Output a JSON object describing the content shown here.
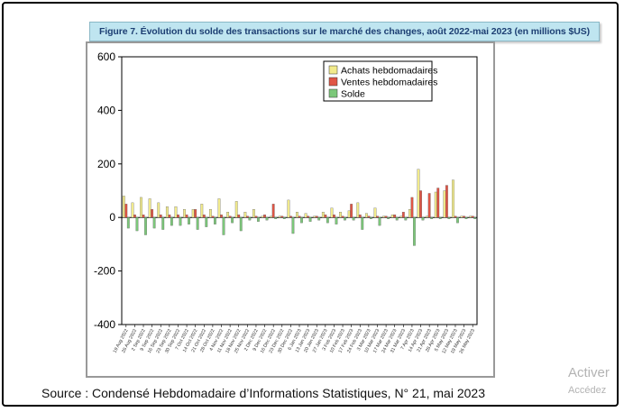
{
  "figure": {
    "title": "Figure 7. Évolution du solde des transactions sur le marché des changes, août 2022-mai 2023 (en millions $US)"
  },
  "source_text": "Source : Condensé Hebdomadaire d’Informations Statistiques, N° 21, mai 2023",
  "overlay": {
    "activation_line1": "Activer",
    "activation_line2": "Accédez"
  },
  "colors": {
    "achats": "#f2eb8c",
    "ventes": "#e05545",
    "solde": "#7cc87a",
    "title_bg": "#bfe5f0",
    "title_text": "#1d3f73"
  },
  "chart_data": {
    "type": "bar",
    "title": "",
    "xlabel": "",
    "ylabel": "",
    "ylim": [
      -400,
      600
    ],
    "yticks": [
      "600",
      "400",
      "200",
      "0",
      "-200",
      "-400"
    ],
    "grid": false,
    "legend_position": "top-right",
    "categories": [
      "19 Aug 2022",
      "26 Aug 2022",
      "2 Sep 2022",
      "9 Sep 2022",
      "16 Sep 2022",
      "23 Sep 2022",
      "30 Sep 2022",
      "7 Oct 2022",
      "14 Oct 2022",
      "21 Oct 2022",
      "28 Oct 2022",
      "4 Nov 2022",
      "11 Nov 2022",
      "18 Nov 2022",
      "25 Nov 2022",
      "2 Dec 2022",
      "9 Dec 2022",
      "16 Dec 2022",
      "23 Dec 2022",
      "30 Dec 2022",
      "6 Jan 2023",
      "13 Jan 2023",
      "20 Jan 2023",
      "27 Jan 2023",
      "3 Feb 2023",
      "10 Feb 2023",
      "17 Feb 2023",
      "24 Feb 2023",
      "3 Mar 2023",
      "10 Mar 2023",
      "17 Mar 2023",
      "24 Mar 2023",
      "31 Mar 2023",
      "7 Apr 2023",
      "14 Apr 2023",
      "21 Apr 2023",
      "28 Apr 2023",
      "5 May 2023",
      "12 May 2023",
      "19 May 2023",
      "26 May 2023"
    ],
    "series": [
      {
        "name": "Achats hebdomadaires",
        "values": [
          80,
          55,
          75,
          70,
          55,
          40,
          40,
          30,
          30,
          50,
          30,
          70,
          20,
          60,
          20,
          30,
          5,
          5,
          5,
          65,
          20,
          15,
          5,
          20,
          35,
          20,
          25,
          55,
          15,
          35,
          5,
          10,
          5,
          30,
          180,
          5,
          95,
          100,
          140,
          5,
          5
        ]
      },
      {
        "name": "Ventes hebdomadaires",
        "values": [
          50,
          10,
          10,
          30,
          10,
          10,
          10,
          10,
          30,
          10,
          5,
          10,
          5,
          10,
          5,
          5,
          10,
          50,
          5,
          5,
          5,
          5,
          5,
          10,
          10,
          5,
          50,
          10,
          5,
          5,
          5,
          10,
          20,
          75,
          100,
          90,
          110,
          120,
          5,
          5,
          5
        ]
      },
      {
        "name": "Solde",
        "values": [
          -40,
          -50,
          -65,
          -40,
          -45,
          -30,
          -30,
          -25,
          -45,
          -35,
          -25,
          -65,
          -20,
          -50,
          -10,
          -15,
          -10,
          -5,
          -5,
          -60,
          -20,
          -15,
          -10,
          -20,
          -25,
          -10,
          -10,
          -45,
          -5,
          -30,
          -5,
          -10,
          -10,
          -105,
          -10,
          -5,
          -5,
          -5,
          -20,
          -5,
          -5
        ]
      }
    ]
  }
}
